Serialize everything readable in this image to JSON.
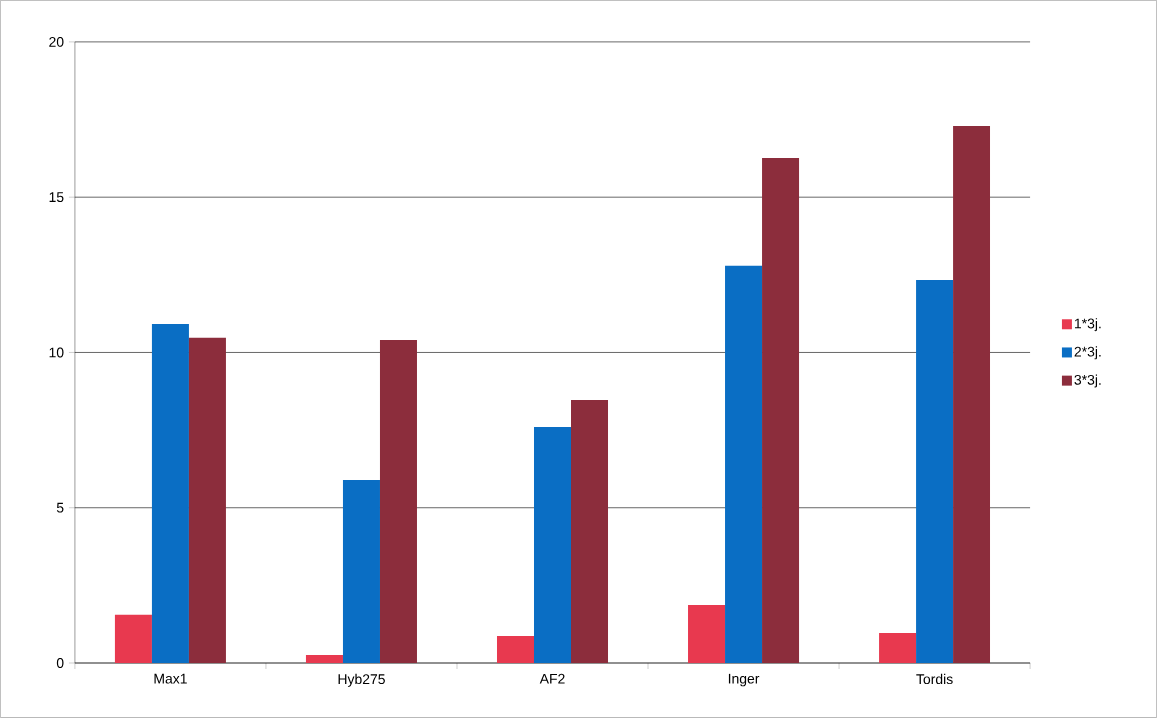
{
  "chart_data": {
    "type": "bar",
    "categories": [
      "Max1",
      "Hyb275",
      "AF2",
      "Inger",
      "Tordis"
    ],
    "series": [
      {
        "name": "1*3j.",
        "color": "#e8394f",
        "values": [
          1.55,
          0.26,
          0.87,
          1.87,
          0.97
        ]
      },
      {
        "name": "2*3j.",
        "color": "#0a6ec4",
        "values": [
          10.92,
          5.89,
          7.6,
          12.79,
          12.33
        ]
      },
      {
        "name": "3*3j.",
        "color": "#8c2d3c",
        "values": [
          10.47,
          10.4,
          8.47,
          16.26,
          17.29
        ]
      }
    ],
    "ylim": [
      0,
      20
    ],
    "yticks": [
      0,
      5,
      10,
      15,
      20
    ],
    "grid": "y",
    "legend": "right"
  }
}
